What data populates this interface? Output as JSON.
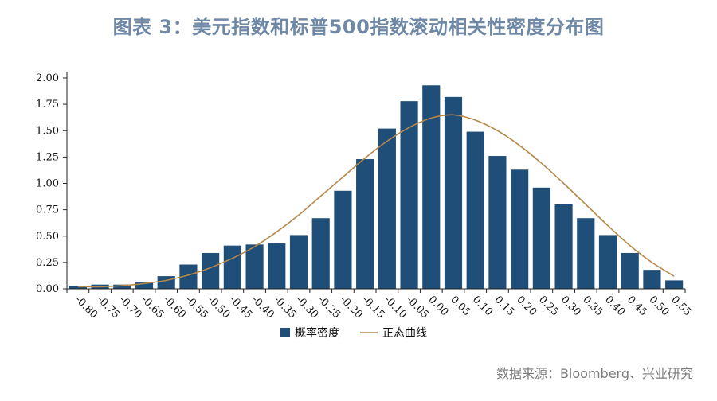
{
  "title": "图表 3：美元指数和标普500指数滚动相关性密度分布图",
  "source": "数据来源：Bloomberg、兴业研究",
  "chart_data": {
    "type": "bar",
    "categories": [
      "-0.80",
      "-0.75",
      "-0.70",
      "-0.65",
      "-0.60",
      "-0.55",
      "-0.50",
      "-0.45",
      "-0.40",
      "-0.35",
      "-0.30",
      "-0.25",
      "-0.20",
      "-0.15",
      "-0.10",
      "-0.05",
      "0.00",
      "0.05",
      "0.10",
      "0.15",
      "0.20",
      "0.25",
      "0.30",
      "0.35",
      "0.40",
      "0.45",
      "0.50",
      "0.55"
    ],
    "series": [
      {
        "name": "概率密度",
        "type": "bar",
        "color": "#1f4e79",
        "values": [
          0.03,
          0.04,
          0.04,
          0.06,
          0.12,
          0.23,
          0.34,
          0.41,
          0.42,
          0.43,
          0.51,
          0.67,
          0.93,
          1.23,
          1.52,
          1.78,
          1.93,
          1.82,
          1.49,
          1.26,
          1.13,
          0.96,
          0.8,
          0.67,
          0.51,
          0.34,
          0.18,
          0.08
        ]
      },
      {
        "name": "正态曲线",
        "type": "line",
        "color": "#b5884a",
        "values": [
          0.02,
          0.02,
          0.03,
          0.05,
          0.08,
          0.13,
          0.2,
          0.29,
          0.4,
          0.54,
          0.7,
          0.88,
          1.06,
          1.24,
          1.4,
          1.53,
          1.62,
          1.65,
          1.6,
          1.5,
          1.36,
          1.19,
          1.0,
          0.8,
          0.6,
          0.41,
          0.25,
          0.12
        ]
      }
    ],
    "yticks": [
      "0.00",
      "0.25",
      "0.50",
      "0.75",
      "1.00",
      "1.25",
      "1.50",
      "1.75",
      "2.00"
    ],
    "ylim": [
      0,
      2.0
    ],
    "legend": "bottom-center",
    "grid": false
  }
}
